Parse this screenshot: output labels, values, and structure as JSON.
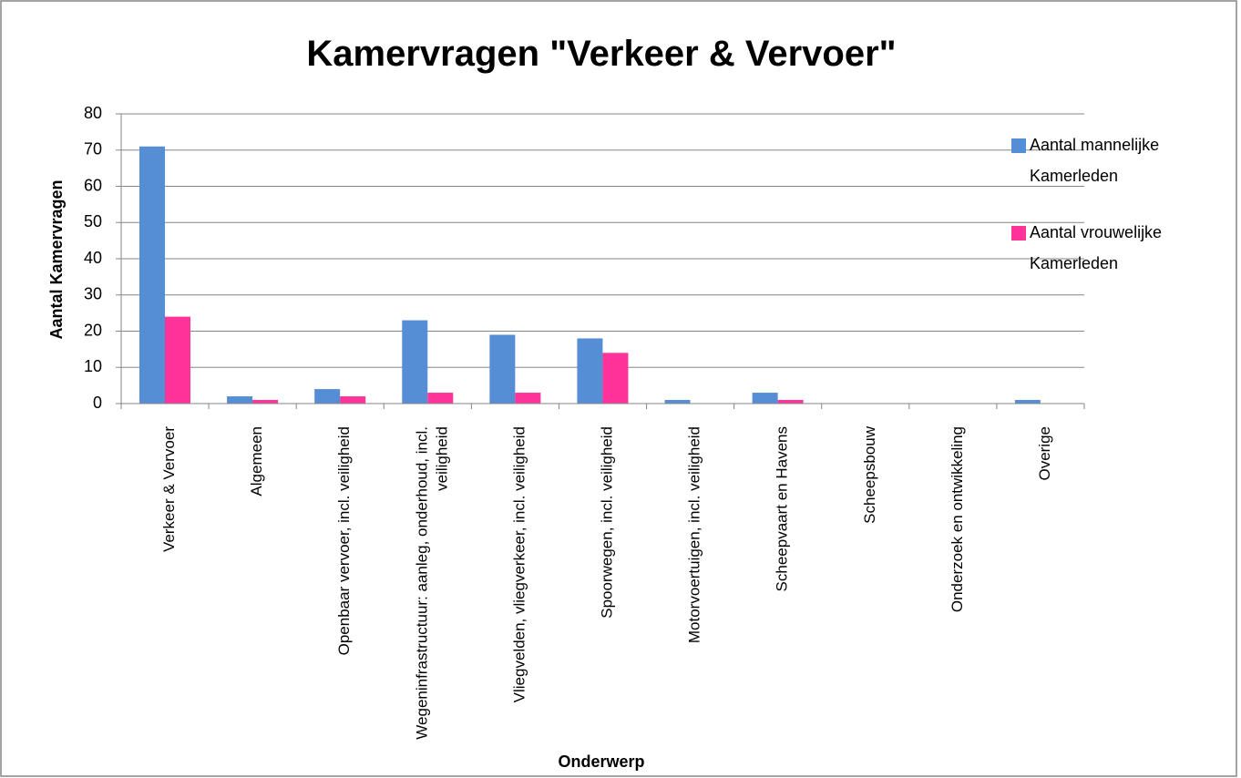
{
  "chart_data": {
    "type": "bar",
    "title": "Kamervragen \"Verkeer & Vervoer\"",
    "x_label": "Onderwerp",
    "y_label": "Aantal Kamervragen",
    "categories": [
      "Verkeer & Vervoer",
      "Algemeen",
      "Openbaar vervoer, incl. veiligheid",
      "Wegeninfrastructuur: aanleg, onderhoud, incl. veiligheid",
      "Vliegvelden, vliegverkeer, incl. veiligheid",
      "Spoorwegen, incl. veiligheid",
      "Motorvoertuigen, incl. veiligheid",
      "Scheepvaart en Havens",
      "Scheepsbouw",
      "Onderzoek en ontwikkeling",
      "Overige"
    ],
    "series": [
      {
        "name": "Aantal mannelijke Kamerleden",
        "color": "#558ed5",
        "values": [
          71,
          2,
          4,
          23,
          19,
          18,
          1,
          3,
          0,
          0,
          1
        ]
      },
      {
        "name": "Aantal vrouwelijke Kamerleden",
        "color": "#ff3399",
        "values": [
          24,
          1,
          2,
          3,
          3,
          14,
          0,
          1,
          0,
          0,
          0
        ]
      }
    ],
    "ylim": [
      0,
      80
    ],
    "yticks": [
      0,
      10,
      20,
      30,
      40,
      50,
      60,
      70,
      80
    ],
    "grid": true,
    "legend": "right"
  }
}
